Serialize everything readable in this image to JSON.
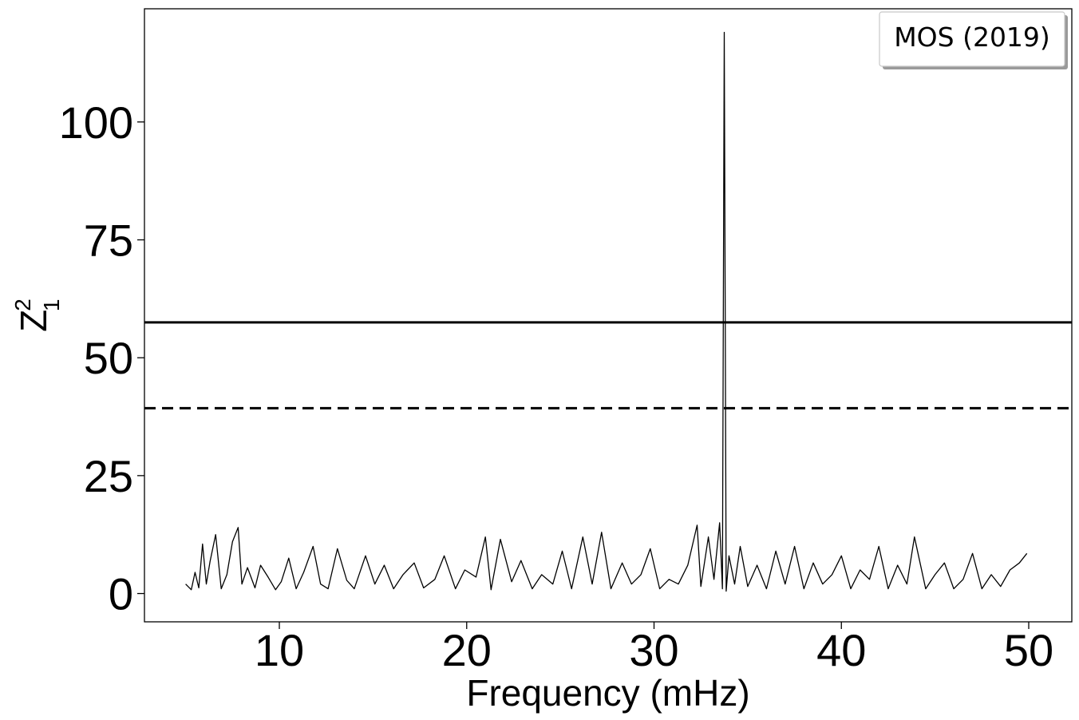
{
  "chart_data": {
    "type": "line",
    "title": "",
    "xlabel": "Frequency (mHz)",
    "ylabel_main": "Z",
    "ylabel_sup": "2",
    "ylabel_sub": "1",
    "xlim": [
      2.8,
      52.3
    ],
    "ylim": [
      -6,
      124
    ],
    "xticks": [
      10,
      20,
      30,
      40,
      50
    ],
    "yticks": [
      0,
      25,
      50,
      75,
      100
    ],
    "grid": false,
    "legend": {
      "placement": "top-right",
      "entries": [
        "MOS (2019)"
      ]
    },
    "hlines": [
      {
        "y": 57.5,
        "style": "solid"
      },
      {
        "y": 39.3,
        "style": "dashed"
      }
    ],
    "series": [
      {
        "x": [
          5.0,
          5.3,
          5.5,
          5.7,
          5.9,
          6.1,
          6.3,
          6.6,
          6.9,
          7.2,
          7.5,
          7.8,
          8.0,
          8.3,
          8.7,
          9.0,
          9.4,
          9.8,
          10.1,
          10.5,
          10.9,
          11.3,
          11.8,
          12.2,
          12.6,
          13.1,
          13.6,
          14.0,
          14.6,
          15.1,
          15.6,
          16.1,
          16.6,
          17.2,
          17.7,
          18.3,
          18.8,
          19.4,
          19.9,
          20.5,
          21.0,
          21.3,
          21.8,
          22.4,
          22.9,
          23.5,
          24.0,
          24.6,
          25.1,
          25.6,
          26.2,
          26.7,
          27.2,
          27.7,
          28.3,
          28.8,
          29.3,
          29.8,
          30.3,
          30.8,
          31.3,
          31.8,
          32.3,
          32.5,
          32.9,
          33.2,
          33.5,
          33.65,
          33.75,
          33.85,
          34.0,
          34.3,
          34.6,
          35.0,
          35.5,
          36.0,
          36.5,
          37.0,
          37.5,
          38.0,
          38.5,
          39.0,
          39.5,
          40.0,
          40.5,
          41.0,
          41.5,
          42.0,
          42.5,
          43.0,
          43.5,
          43.9,
          44.5,
          45.0,
          45.5,
          46.0,
          46.5,
          47.0,
          47.5,
          48.0,
          48.5,
          49.0,
          49.5,
          49.9
        ],
        "y": [
          2.0,
          0.8,
          4.5,
          1.2,
          10.5,
          2.0,
          6.8,
          12.5,
          1.0,
          4.0,
          11.0,
          14.0,
          2.0,
          5.5,
          1.2,
          6.0,
          3.5,
          0.8,
          2.5,
          7.5,
          1.0,
          4.5,
          10.0,
          2.0,
          1.0,
          9.5,
          2.8,
          1.0,
          8.0,
          2.0,
          6.0,
          1.0,
          4.0,
          6.5,
          1.2,
          3.0,
          8.0,
          1.0,
          5.0,
          3.5,
          12.0,
          0.8,
          11.5,
          2.5,
          7.0,
          1.0,
          4.0,
          2.0,
          9.0,
          1.0,
          12.0,
          2.0,
          13.0,
          1.0,
          6.5,
          2.0,
          4.0,
          9.5,
          1.0,
          3.0,
          2.0,
          6.0,
          14.5,
          1.5,
          12.0,
          3.0,
          15.0,
          1.0,
          119.0,
          0.5,
          8.0,
          2.0,
          10.0,
          1.5,
          6.0,
          1.0,
          9.0,
          2.0,
          10.0,
          1.0,
          6.5,
          2.0,
          4.0,
          8.0,
          1.0,
          5.0,
          3.0,
          10.0,
          1.0,
          6.0,
          2.0,
          12.0,
          1.0,
          4.0,
          6.5,
          1.0,
          3.0,
          8.5,
          1.0,
          4.0,
          1.5,
          5.0,
          6.5,
          8.5
        ]
      }
    ]
  }
}
